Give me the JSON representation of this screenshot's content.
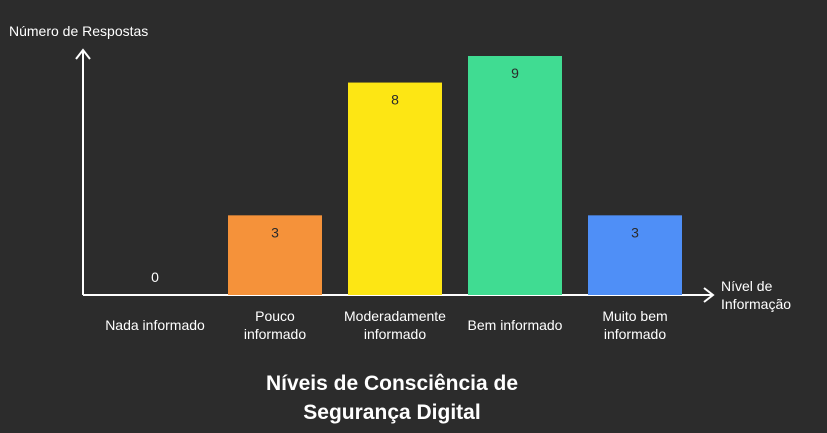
{
  "chart_data": {
    "type": "bar",
    "title": [
      "Níveis de Consciência de",
      "Segurança Digital"
    ],
    "xlabel": [
      "Nível de",
      "Informação"
    ],
    "ylabel": "Número de Respostas",
    "categories": [
      [
        "Nada informado"
      ],
      [
        "Pouco",
        "informado"
      ],
      [
        "Moderadamente",
        "informado"
      ],
      [
        "Bem informado"
      ],
      [
        "Muito bem",
        "informado"
      ]
    ],
    "values": [
      0,
      3,
      8,
      9,
      3
    ],
    "colors": [
      "#2c2c2c",
      "#f5923a",
      "#fde614",
      "#40dc92",
      "#4f8ff7"
    ],
    "ylim": [
      0,
      9
    ],
    "grid": false,
    "legend": "none"
  }
}
